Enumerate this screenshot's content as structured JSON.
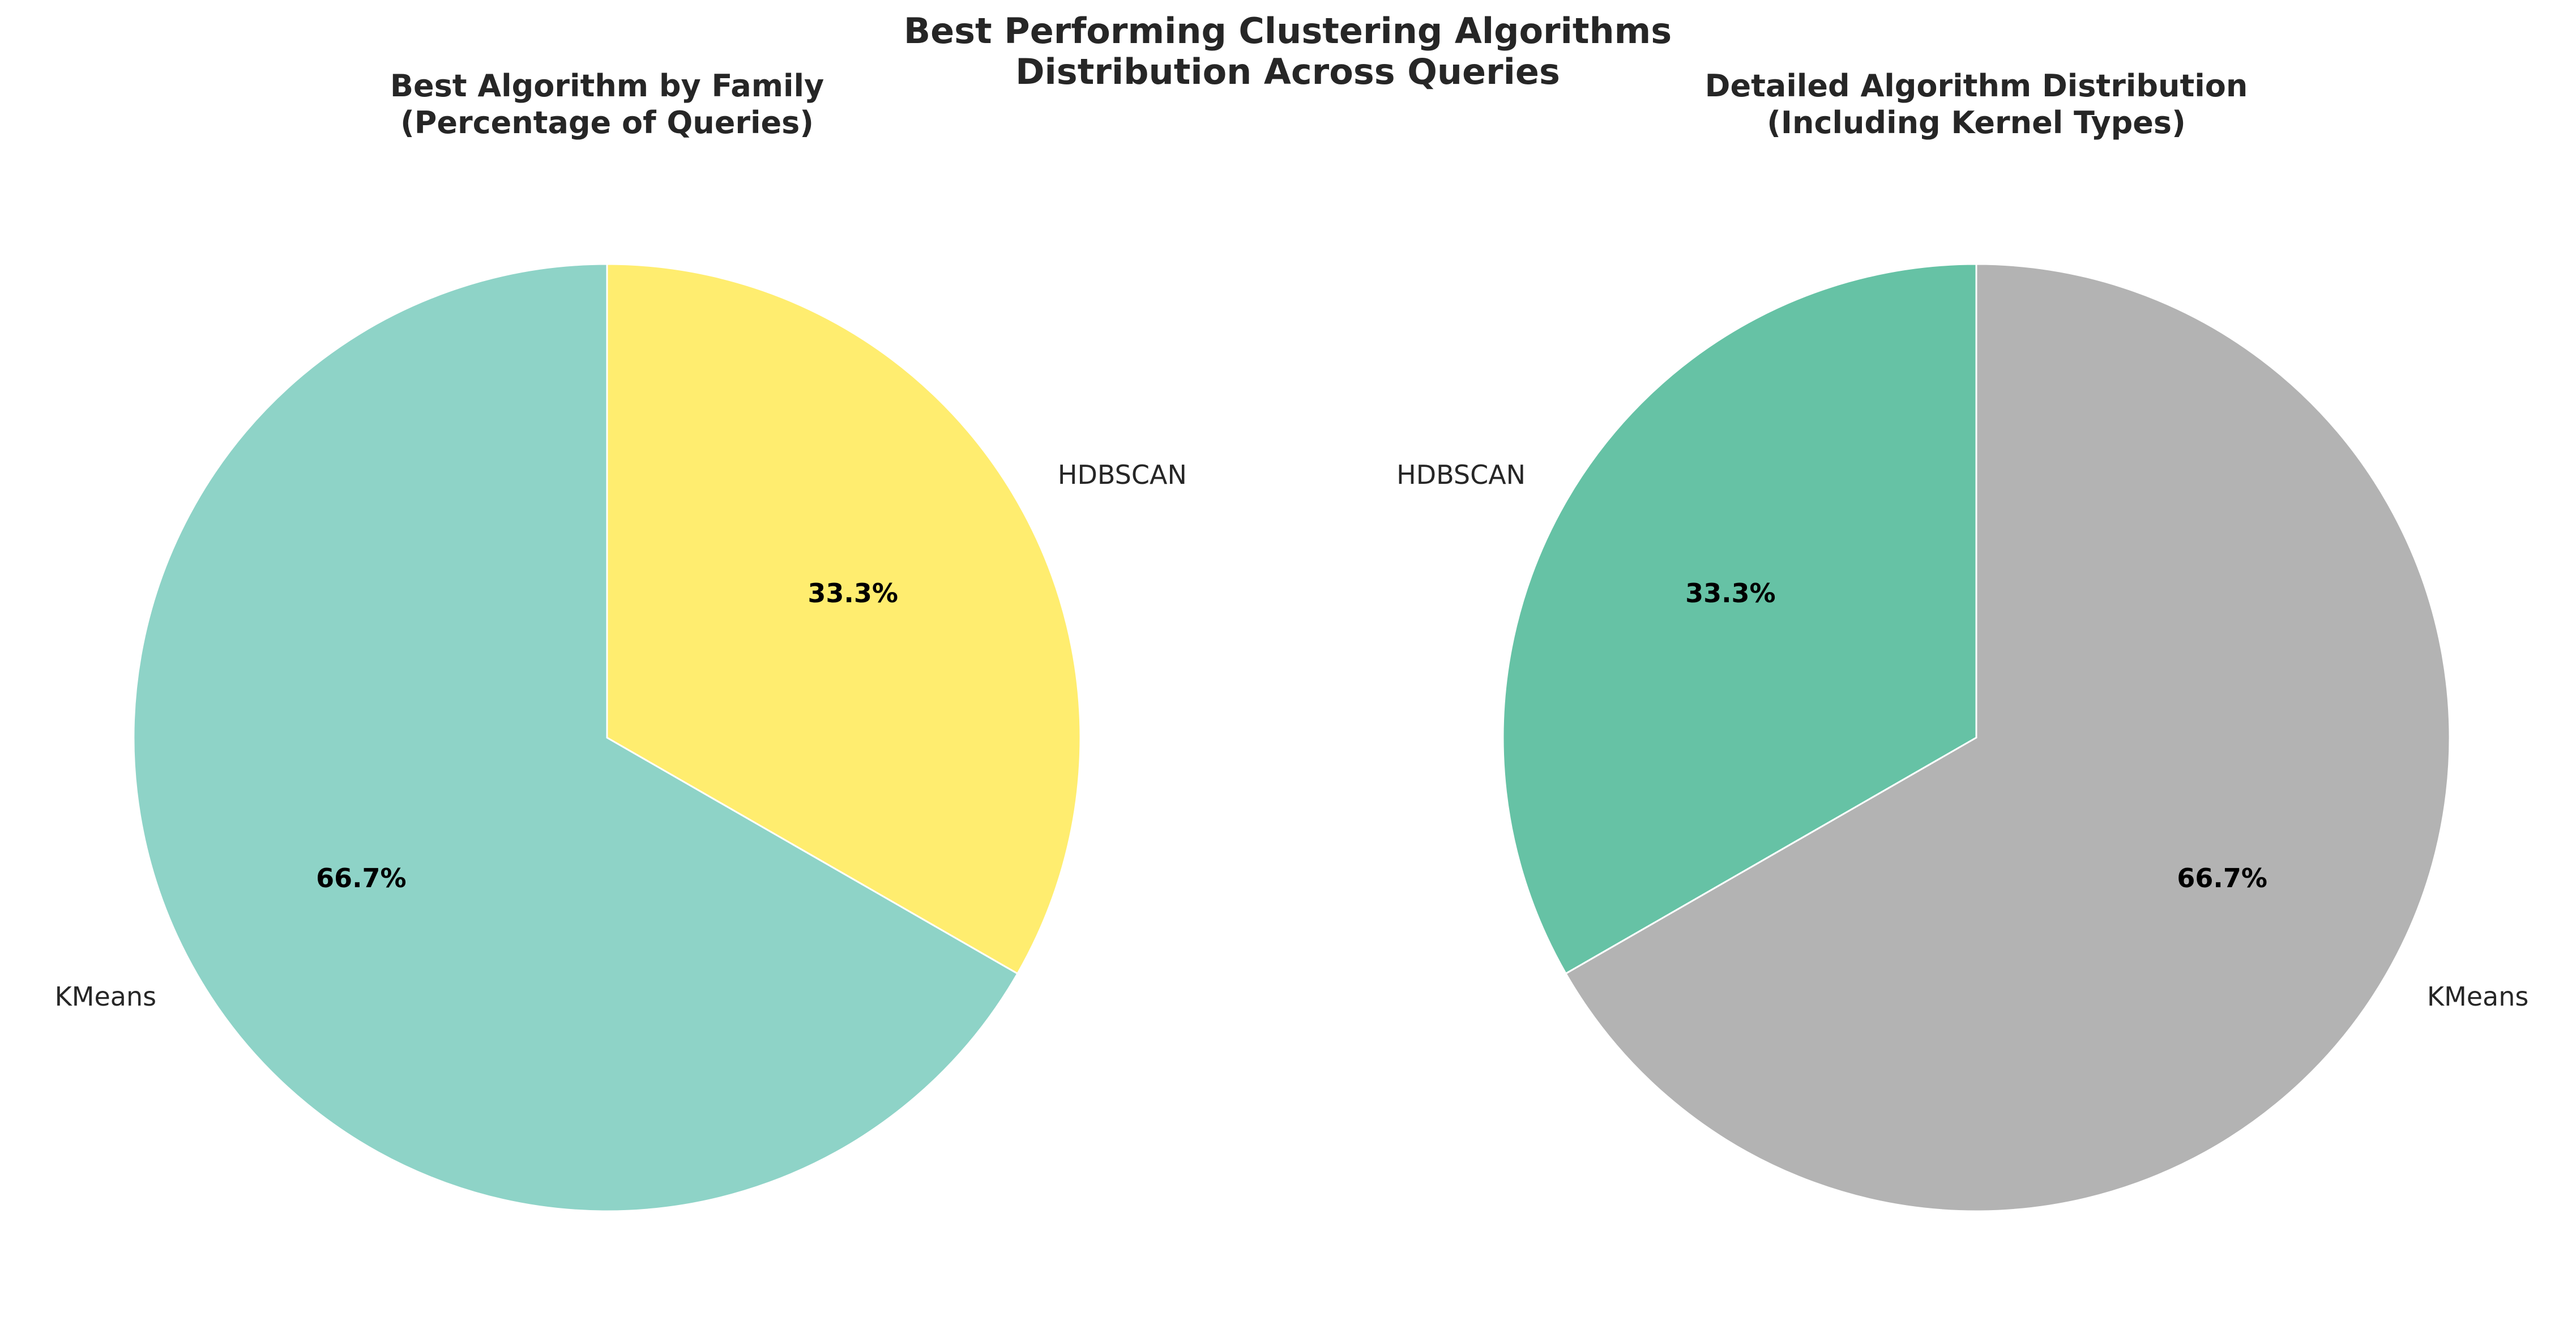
{
  "figure": {
    "title_line1": "Best Performing Clustering Algorithms",
    "title_line2": "Distribution Across Queries"
  },
  "chart_data": [
    {
      "type": "pie",
      "title_line1": "Best Algorithm by Family",
      "title_line2": "(Percentage of Queries)",
      "start_angle_deg": 90,
      "direction": "counterclockwise",
      "slices": [
        {
          "label": "KMeans",
          "value": 66.7,
          "pct_label": "66.7%",
          "color": "#8ed3c7"
        },
        {
          "label": "HDBSCAN",
          "value": 33.3,
          "pct_label": "33.3%",
          "color": "#ffed6f"
        }
      ]
    },
    {
      "type": "pie",
      "title_line1": "Detailed Algorithm Distribution",
      "title_line2": "(Including Kernel Types)",
      "start_angle_deg": 90,
      "direction": "counterclockwise",
      "slices": [
        {
          "label": "HDBSCAN",
          "value": 33.3,
          "pct_label": "33.3%",
          "color": "#66c2a5"
        },
        {
          "label": "KMeans",
          "value": 66.7,
          "pct_label": "66.7%",
          "color": "#b3b3b3"
        }
      ]
    }
  ]
}
